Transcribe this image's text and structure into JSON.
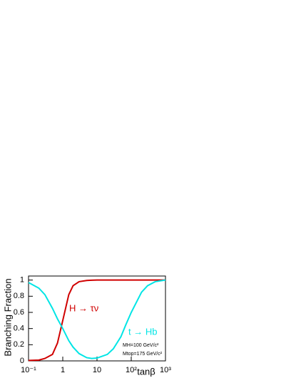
{
  "chart_data": {
    "type": "line",
    "x_label": "tanβ",
    "y_label": "Branching Fraction",
    "log_x": true,
    "x": [
      0.1,
      0.2,
      0.3,
      0.5,
      0.7,
      1,
      1.5,
      2,
      3,
      5,
      7,
      10,
      20,
      30,
      50,
      70,
      100,
      200,
      300,
      500,
      1000
    ],
    "series": [
      {
        "name": "H → τν",
        "color": "#d00000",
        "values": [
          0.005,
          0.01,
          0.03,
          0.08,
          0.22,
          0.5,
          0.82,
          0.93,
          0.98,
          0.995,
          0.998,
          1,
          1,
          1,
          1,
          1,
          1,
          1,
          1,
          1,
          1
        ]
      },
      {
        "name": "t → Hb",
        "color": "#00e5e5",
        "values": [
          0.97,
          0.9,
          0.82,
          0.65,
          0.52,
          0.4,
          0.25,
          0.17,
          0.09,
          0.04,
          0.03,
          0.035,
          0.08,
          0.15,
          0.3,
          0.45,
          0.6,
          0.85,
          0.93,
          0.98,
          1
        ]
      }
    ],
    "annotations": [
      "MH=100 GeV/c²",
      "Mtop=175 GeV/c²"
    ],
    "xlim": [
      0.1,
      1000
    ],
    "xticks": [
      {
        "value": 0.1,
        "label": "10⁻¹"
      },
      1,
      10,
      {
        "value": 100,
        "label": "10²"
      },
      {
        "value": 1000,
        "label": "10³"
      }
    ],
    "ylim": [
      0,
      1.05
    ],
    "yticks": [
      0,
      0.2,
      0.4,
      0.6,
      0.8,
      1
    ]
  }
}
